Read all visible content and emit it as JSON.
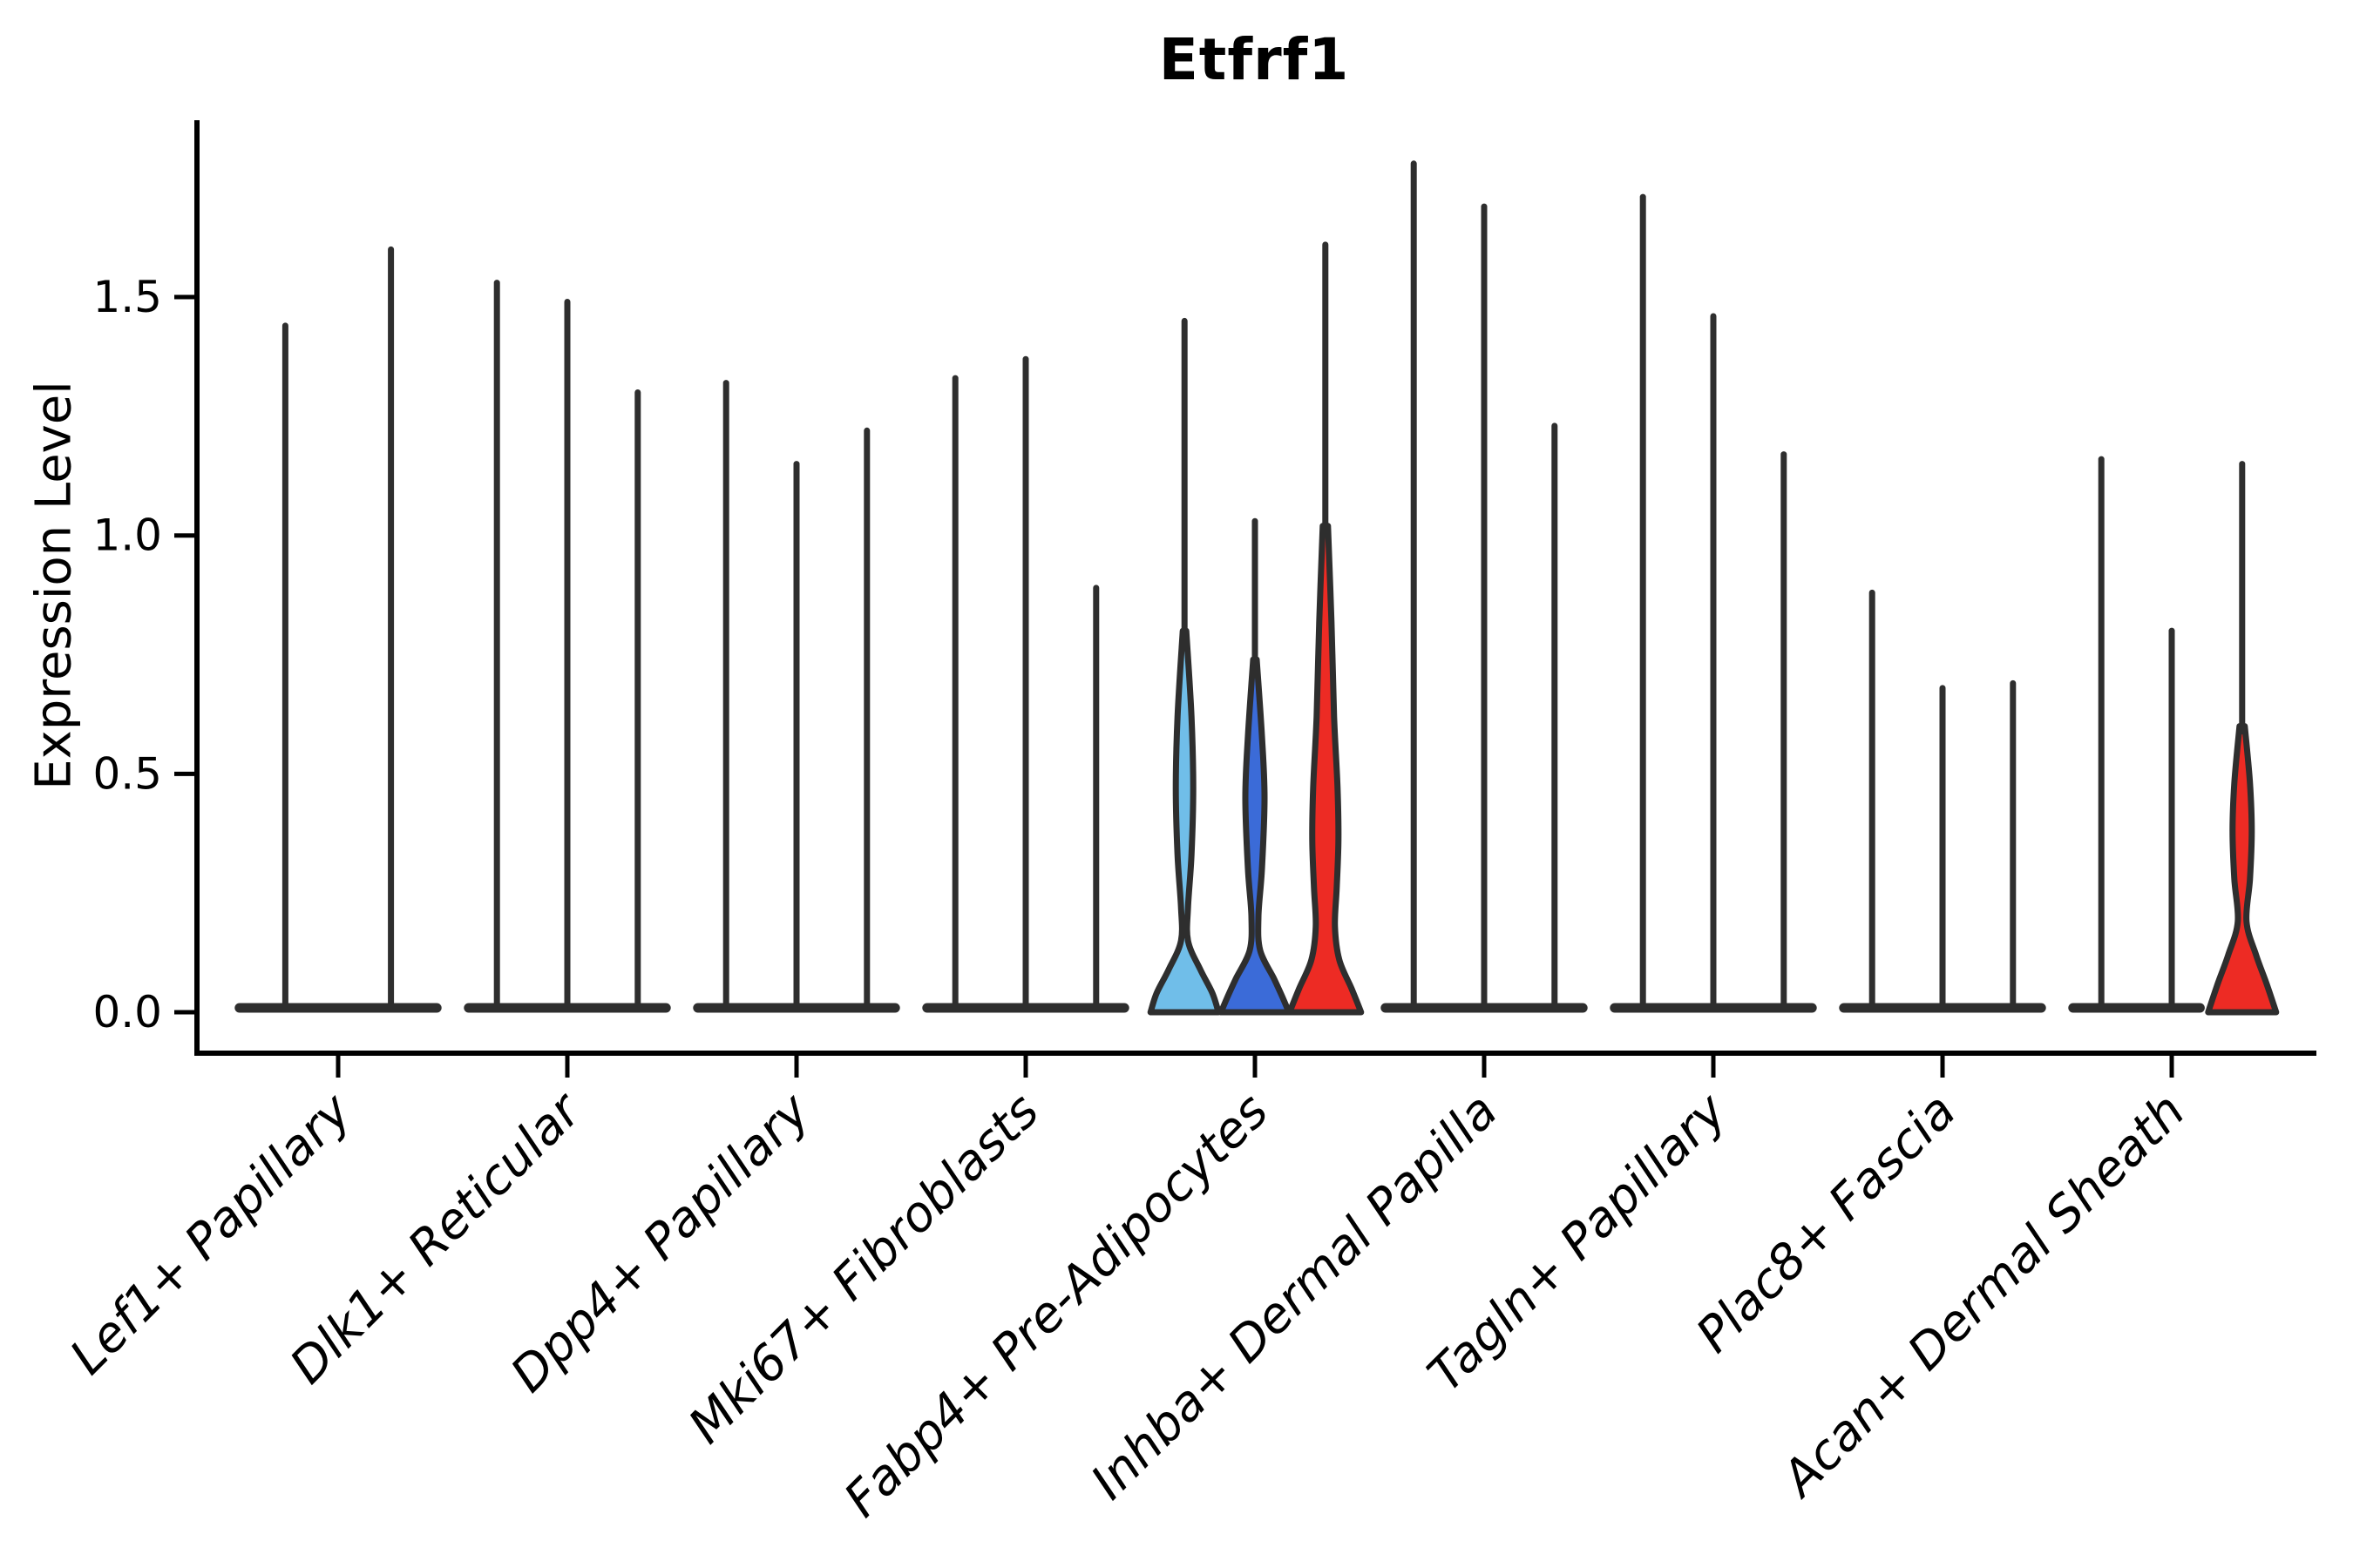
{
  "figure": {
    "title": "Etfrf1",
    "ylabel": "Expression Level"
  },
  "style": {
    "axis_color": "#000000",
    "violin_outline": "#2e2e2e",
    "fill_light_blue": "#70BEE9",
    "fill_blue": "#3B6BD8",
    "fill_red": "#ED2B24",
    "background": "#ffffff"
  },
  "chart_data": {
    "type": "violin",
    "title": "Etfrf1",
    "xlabel": "",
    "ylabel": "Expression Level",
    "ytick_labels": [
      "0.0",
      "0.5",
      "1.0",
      "1.5"
    ],
    "ytick_values": [
      0.0,
      0.5,
      1.0,
      1.5
    ],
    "ylim": [
      -0.06,
      1.87
    ],
    "grid": false,
    "legend": "none",
    "categories": [
      "Lef1+ Papillary",
      "Dlk1+ Reticular",
      "Dpp4+ Papillary",
      "Mki67+ Fibroblasts",
      "Fabp4+ Pre-Adipocytes",
      "Inhba+ Dermal Papilla",
      "Tagln+ Papillary",
      "Plac8+ Fascia",
      "Acan+ Dermal Sheath"
    ],
    "groups": [
      {
        "label": "Lef1+ Papillary",
        "violins": [
          {
            "max": 1.44,
            "fill": "none"
          },
          {
            "max": 1.6,
            "fill": "none"
          }
        ]
      },
      {
        "label": "Dlk1+ Reticular",
        "violins": [
          {
            "max": 1.53,
            "fill": "none"
          },
          {
            "max": 1.49,
            "fill": "none"
          },
          {
            "max": 1.3,
            "fill": "none"
          }
        ]
      },
      {
        "label": "Dpp4+ Papillary",
        "violins": [
          {
            "max": 1.32,
            "fill": "none"
          },
          {
            "max": 1.15,
            "fill": "none"
          },
          {
            "max": 1.22,
            "fill": "none"
          }
        ]
      },
      {
        "label": "Mki67+ Fibroblasts",
        "violins": [
          {
            "max": 1.33,
            "fill": "none"
          },
          {
            "max": 1.37,
            "fill": "none"
          },
          {
            "max": 0.89,
            "fill": "none"
          }
        ]
      },
      {
        "label": "Fabp4+ Pre-Adipocytes",
        "violins": [
          {
            "max": 1.45,
            "fill": "#70BEE9",
            "profile": [
              [
                0.8,
                2
              ],
              [
                0.62,
                8
              ],
              [
                0.47,
                10
              ],
              [
                0.33,
                8
              ],
              [
                0.22,
                4
              ],
              [
                0.15,
                4
              ],
              [
                0.09,
                18
              ],
              [
                0.04,
                32
              ],
              [
                0,
                39
              ]
            ]
          },
          {
            "max": 1.03,
            "fill": "#3B6BD8",
            "profile": [
              [
                0.74,
                2
              ],
              [
                0.58,
                8
              ],
              [
                0.45,
                11
              ],
              [
                0.3,
                8
              ],
              [
                0.2,
                4
              ],
              [
                0.13,
                6
              ],
              [
                0.07,
                22
              ],
              [
                0.03,
                32
              ],
              [
                0,
                39
              ]
            ]
          },
          {
            "max": 1.61,
            "fill": "#ED2B24",
            "profile": [
              [
                1.02,
                3
              ],
              [
                0.82,
                7
              ],
              [
                0.62,
                10
              ],
              [
                0.47,
                14
              ],
              [
                0.36,
                15
              ],
              [
                0.26,
                13
              ],
              [
                0.18,
                11
              ],
              [
                0.11,
                16
              ],
              [
                0.05,
                30
              ],
              [
                0,
                41
              ]
            ]
          }
        ]
      },
      {
        "label": "Inhba+ Dermal Papilla",
        "violins": [
          {
            "max": 1.78,
            "fill": "none"
          },
          {
            "max": 1.69,
            "fill": "none"
          },
          {
            "max": 1.23,
            "fill": "none"
          }
        ]
      },
      {
        "label": "Tagln+ Papillary",
        "violins": [
          {
            "max": 1.71,
            "fill": "none"
          },
          {
            "max": 1.46,
            "fill": "none"
          },
          {
            "max": 1.17,
            "fill": "none"
          }
        ]
      },
      {
        "label": "Plac8+ Fascia",
        "violins": [
          {
            "max": 0.88,
            "fill": "none"
          },
          {
            "max": 0.68,
            "fill": "none"
          },
          {
            "max": 0.69,
            "fill": "none"
          }
        ]
      },
      {
        "label": "Acan+ Dermal Sheath",
        "violins": [
          {
            "max": 1.16,
            "fill": "none"
          },
          {
            "max": 0.8,
            "fill": "none"
          },
          {
            "max": 1.15,
            "fill": "#ED2B24",
            "profile": [
              [
                0.6,
                3
              ],
              [
                0.48,
                9
              ],
              [
                0.38,
                11
              ],
              [
                0.28,
                9
              ],
              [
                0.19,
                5
              ],
              [
                0.12,
                16
              ],
              [
                0.06,
                28
              ],
              [
                0,
                39
              ]
            ]
          }
        ]
      }
    ]
  }
}
